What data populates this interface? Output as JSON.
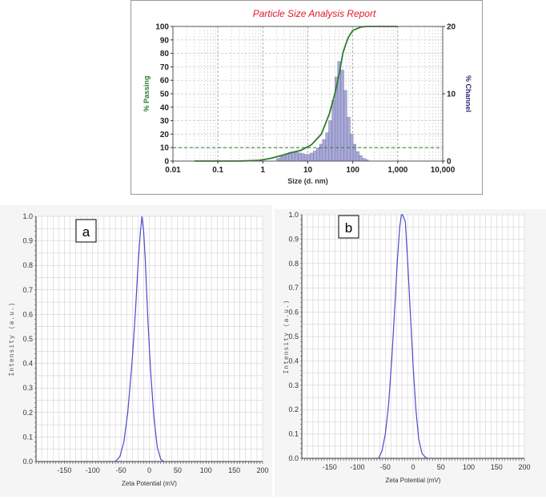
{
  "colors": {
    "title": "#e0162b",
    "passing_line": "#2e7d2e",
    "channel_bar_fill": "#a9a9d6",
    "channel_bar_stroke": "#6a6aa8",
    "channel_axis": "#2a2a7a",
    "zeta_line": "#4a4acf",
    "grid": "#c8c8c8"
  },
  "chart_data": [
    {
      "id": "psa",
      "type": "bar+line",
      "title": "Particle Size Analysis Report",
      "xlabel": "Size (d. nm)",
      "ylabel_left": "% Passing",
      "ylabel_right": "% Channel",
      "x_scale": "log",
      "xlim": [
        0.01,
        10000
      ],
      "ylim_left": [
        0,
        100
      ],
      "ylim_right": [
        0,
        20
      ],
      "x_ticks": [
        0.01,
        0.1,
        1,
        10,
        100,
        1000,
        10000
      ],
      "x_tick_labels": [
        "0.01",
        "0.1",
        "1",
        "10",
        "100",
        "1,000",
        "10,000"
      ],
      "y_left_ticks": [
        0,
        10,
        20,
        30,
        40,
        50,
        60,
        70,
        80,
        90,
        100
      ],
      "y_left_tick_labels": [
        "0",
        "10",
        "20",
        "30",
        "40",
        "50",
        "60",
        "70",
        "80",
        "90",
        "100"
      ],
      "y_right_ticks": [
        0,
        10,
        20
      ],
      "y_right_tick_labels": [
        "0",
        "10",
        "20"
      ],
      "grid": true,
      "passing_series": {
        "name": "% Passing",
        "x": [
          0.03,
          0.3,
          0.8,
          1.5,
          2.5,
          4,
          7,
          12,
          20,
          30,
          40,
          50,
          60,
          70,
          80,
          100,
          150,
          200,
          1000
        ],
        "y": [
          0,
          0,
          0.5,
          2,
          4,
          6,
          8,
          12,
          20,
          35,
          50,
          65,
          80,
          87,
          92,
          97,
          99.5,
          100,
          100
        ]
      },
      "channel_series": {
        "name": "% Channel",
        "x": [
          2.2,
          2.6,
          3.0,
          3.5,
          4.1,
          4.8,
          5.6,
          6.6,
          7.7,
          9.0,
          10.5,
          12.3,
          14.4,
          16.8,
          19.7,
          23,
          27,
          31.5,
          37,
          43,
          50,
          58.5,
          68.5,
          80,
          94,
          110,
          128,
          150,
          175,
          205
        ],
        "y": [
          0.4,
          0.7,
          0.9,
          1.1,
          1.3,
          1.4,
          1.3,
          1.2,
          1.1,
          1.0,
          1.0,
          1.2,
          1.5,
          1.9,
          2.5,
          3.2,
          4.2,
          6.0,
          9.0,
          12.5,
          14.8,
          13.5,
          10.5,
          6.5,
          4.0,
          2.5,
          1.4,
          0.8,
          0.4,
          0.2
        ]
      },
      "reference_line_y": 10
    },
    {
      "id": "zeta-a",
      "type": "line",
      "panel_label": "a",
      "xlabel": "Zeta Potential (mV)",
      "ylabel": "Intensity (a.u.)",
      "xlim": [
        -200,
        200
      ],
      "ylim": [
        0,
        1
      ],
      "x_ticks": [
        -150,
        -100,
        -50,
        0,
        50,
        100,
        150,
        200
      ],
      "x_tick_labels": [
        "-150",
        "-100",
        "-50",
        "0",
        "50",
        "100",
        "150",
        "200"
      ],
      "y_ticks": [
        0,
        0.1,
        0.2,
        0.3,
        0.4,
        0.5,
        0.6,
        0.7,
        0.8,
        0.9,
        1.0
      ],
      "y_tick_labels": [
        "0.0",
        "0.1",
        "0.2",
        "0.3",
        "0.4",
        "0.5",
        "0.6",
        "0.7",
        "0.8",
        "0.9",
        "1.0"
      ],
      "grid": true,
      "series": [
        {
          "x": [
            -60,
            -52,
            -45,
            -38,
            -30,
            -24,
            -20,
            -16,
            -13,
            -10,
            -7,
            -3,
            2,
            8,
            14,
            20,
            25
          ],
          "y": [
            0.0,
            0.02,
            0.08,
            0.2,
            0.42,
            0.63,
            0.8,
            0.93,
            1.0,
            0.94,
            0.82,
            0.6,
            0.38,
            0.18,
            0.06,
            0.01,
            0.0
          ]
        }
      ]
    },
    {
      "id": "zeta-b",
      "type": "line",
      "panel_label": "b",
      "xlabel": "Zeta Potential (mV)",
      "ylabel": "Intensity (a.u.)",
      "xlim": [
        -200,
        200
      ],
      "ylim": [
        0,
        1
      ],
      "x_ticks": [
        -150,
        -100,
        -50,
        0,
        50,
        100,
        150,
        200
      ],
      "x_tick_labels": [
        "-150",
        "-100",
        "-50",
        "0",
        "50",
        "100",
        "150",
        "200"
      ],
      "y_ticks": [
        0,
        0.1,
        0.2,
        0.3,
        0.4,
        0.5,
        0.6,
        0.7,
        0.8,
        0.9,
        1.0
      ],
      "y_tick_labels": [
        "0.0",
        "0.1",
        "0.2",
        "0.3",
        "0.4",
        "0.5",
        "0.6",
        "0.7",
        "0.8",
        "0.9",
        "1.0"
      ],
      "grid": true,
      "series": [
        {
          "x": [
            -62,
            -56,
            -50,
            -44,
            -38,
            -33,
            -28,
            -24,
            -21,
            -19,
            -17,
            -14,
            -10,
            -5,
            0,
            5,
            10,
            16,
            22,
            26
          ],
          "y": [
            0.0,
            0.03,
            0.1,
            0.22,
            0.42,
            0.62,
            0.82,
            0.95,
            1.0,
            1.0,
            0.99,
            0.97,
            0.82,
            0.6,
            0.38,
            0.2,
            0.08,
            0.02,
            0.005,
            0.0
          ]
        }
      ]
    }
  ]
}
